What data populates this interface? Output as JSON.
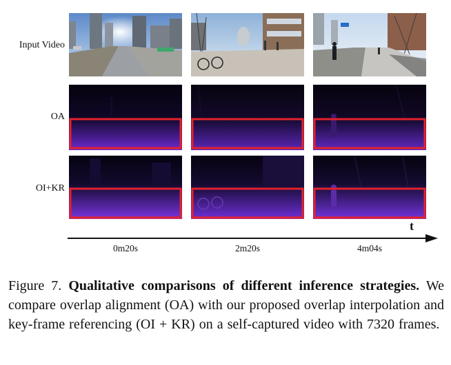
{
  "rows": [
    {
      "label": "Input Video"
    },
    {
      "label": "OA"
    },
    {
      "label": "OI+KR"
    }
  ],
  "timeline": {
    "axis_label": "t",
    "timestamps": [
      "0m20s",
      "2m20s",
      "4m04s"
    ]
  },
  "caption": {
    "figure_label": "Figure 7.",
    "title": "Qualitative comparisons of different inference strategies.",
    "body": "We compare overlap alignment (OA) with our proposed overlap interpolation and key-frame referencing (OI + KR) on a self-captured video with 7320 frames."
  },
  "colors": {
    "highlight_box": "#e3222b",
    "depth_dark": "#0d0620",
    "depth_bright": "#6a2ad0"
  }
}
